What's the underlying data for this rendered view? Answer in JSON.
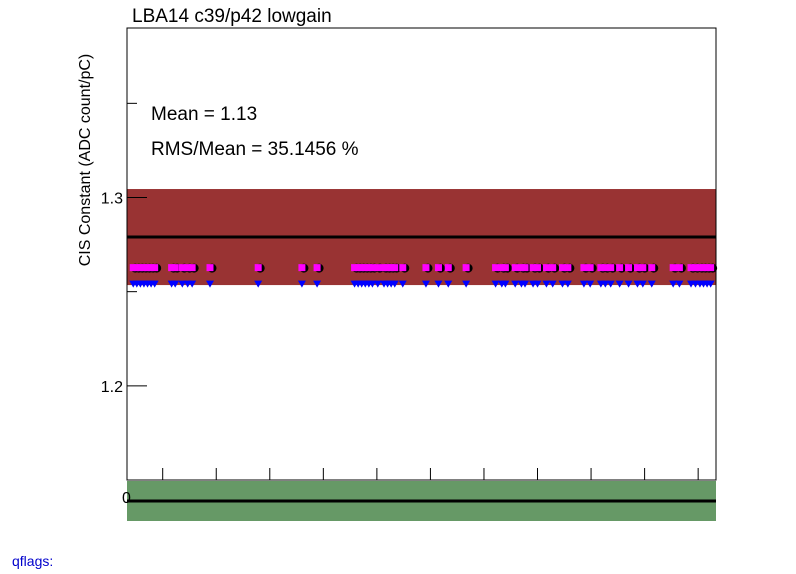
{
  "chart_data": {
    "type": "scatter",
    "title": "LBA14 c39/p42 lowgain",
    "ylabel": "CIS Constant (ADC count/pC)",
    "xlabel": "",
    "xlim": [
      0,
      66
    ],
    "ylim": [
      1.15,
      1.39
    ],
    "y_ticks": [
      1.2,
      1.3
    ],
    "y_tick_labels": [
      "1.2",
      "1.3"
    ],
    "x_origin_label": "0",
    "stats": {
      "mean_text": "Mean = 1.13",
      "rms_text": "RMS/Mean = 35.1456 %"
    },
    "reference_line": 1.279,
    "band": {
      "low": 1.2535,
      "high": 1.3045,
      "color": "#993333"
    },
    "lower_band": {
      "color": "#669966"
    },
    "point_y": 1.2625,
    "marker_y": 1.2585,
    "points_x": [
      0.7,
      1.1,
      1.5,
      1.9,
      2.3,
      2.7,
      3.1,
      5.0,
      5.4,
      6.2,
      6.8,
      7.3,
      9.3,
      14.7,
      19.6,
      21.3,
      25.5,
      25.9,
      26.3,
      26.7,
      27.1,
      27.5,
      28.1,
      28.8,
      29.2,
      29.6,
      30.0,
      30.9,
      33.5,
      34.9,
      36.0,
      38.0,
      41.3,
      42.0,
      42.4,
      43.5,
      44.2,
      44.6,
      45.5,
      46.0,
      47.0,
      47.7,
      48.8,
      49.4,
      51.2,
      51.9,
      53.1,
      53.6,
      54.2,
      55.2,
      56.2,
      57.2,
      57.8,
      58.8,
      61.2,
      61.9,
      63.2,
      63.7,
      64.2,
      64.6,
      65.0,
      65.4
    ],
    "colors": {
      "magenta": "#ff00ff",
      "blue": "#0000ff",
      "black": "#000000"
    }
  },
  "footer": {
    "qflags_label": "qflags:"
  }
}
